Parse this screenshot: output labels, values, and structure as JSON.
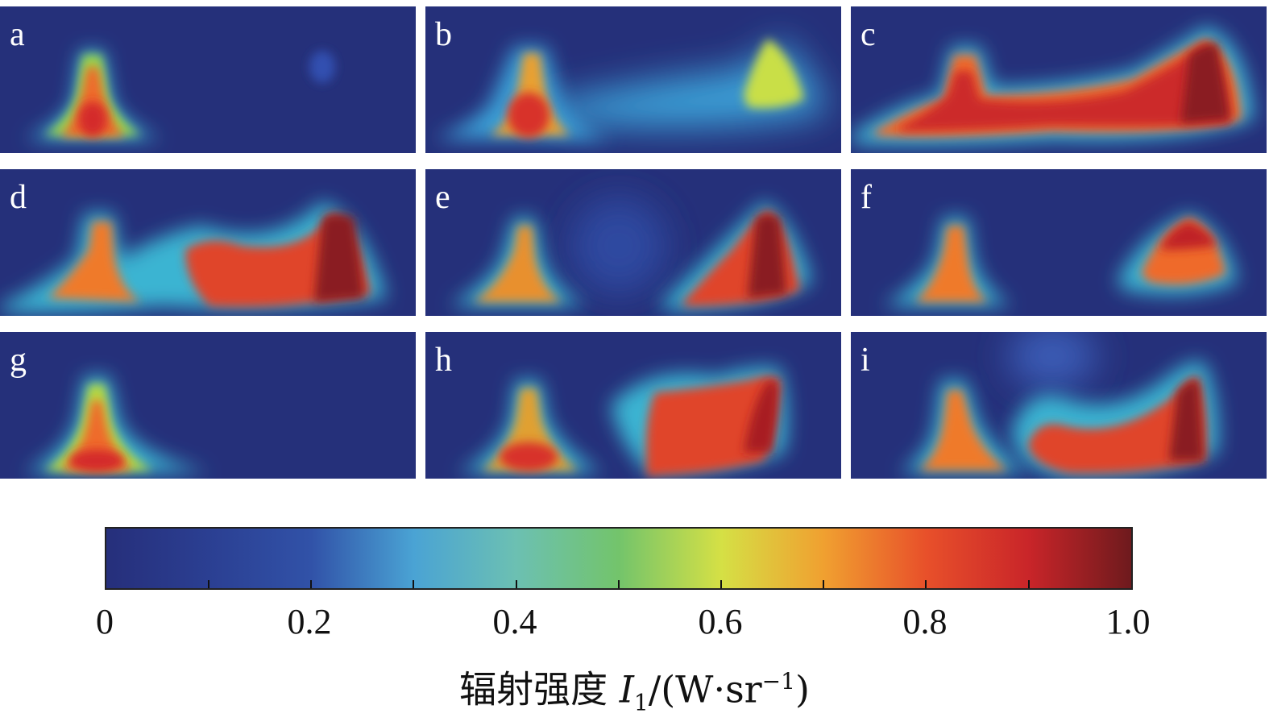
{
  "panels": [
    {
      "label": "a"
    },
    {
      "label": "b"
    },
    {
      "label": "c"
    },
    {
      "label": "d"
    },
    {
      "label": "e"
    },
    {
      "label": "f"
    },
    {
      "label": "g"
    },
    {
      "label": "h"
    },
    {
      "label": "i"
    }
  ],
  "colorbar": {
    "ticks": [
      "0",
      "0.2",
      "0.4",
      "0.6",
      "0.8",
      "1.0"
    ],
    "title_prefix": "辐射强度 ",
    "title_symbol": "I",
    "title_subscript": "1",
    "title_unit_open": "/(W·sr",
    "title_unit_sup": "−1",
    "title_unit_close": ")",
    "range": [
      0,
      1.0
    ]
  },
  "colors": {
    "background": "#25307a",
    "low": "#262f7b",
    "mid": "#73c46b",
    "high": "#6e1a1d"
  }
}
